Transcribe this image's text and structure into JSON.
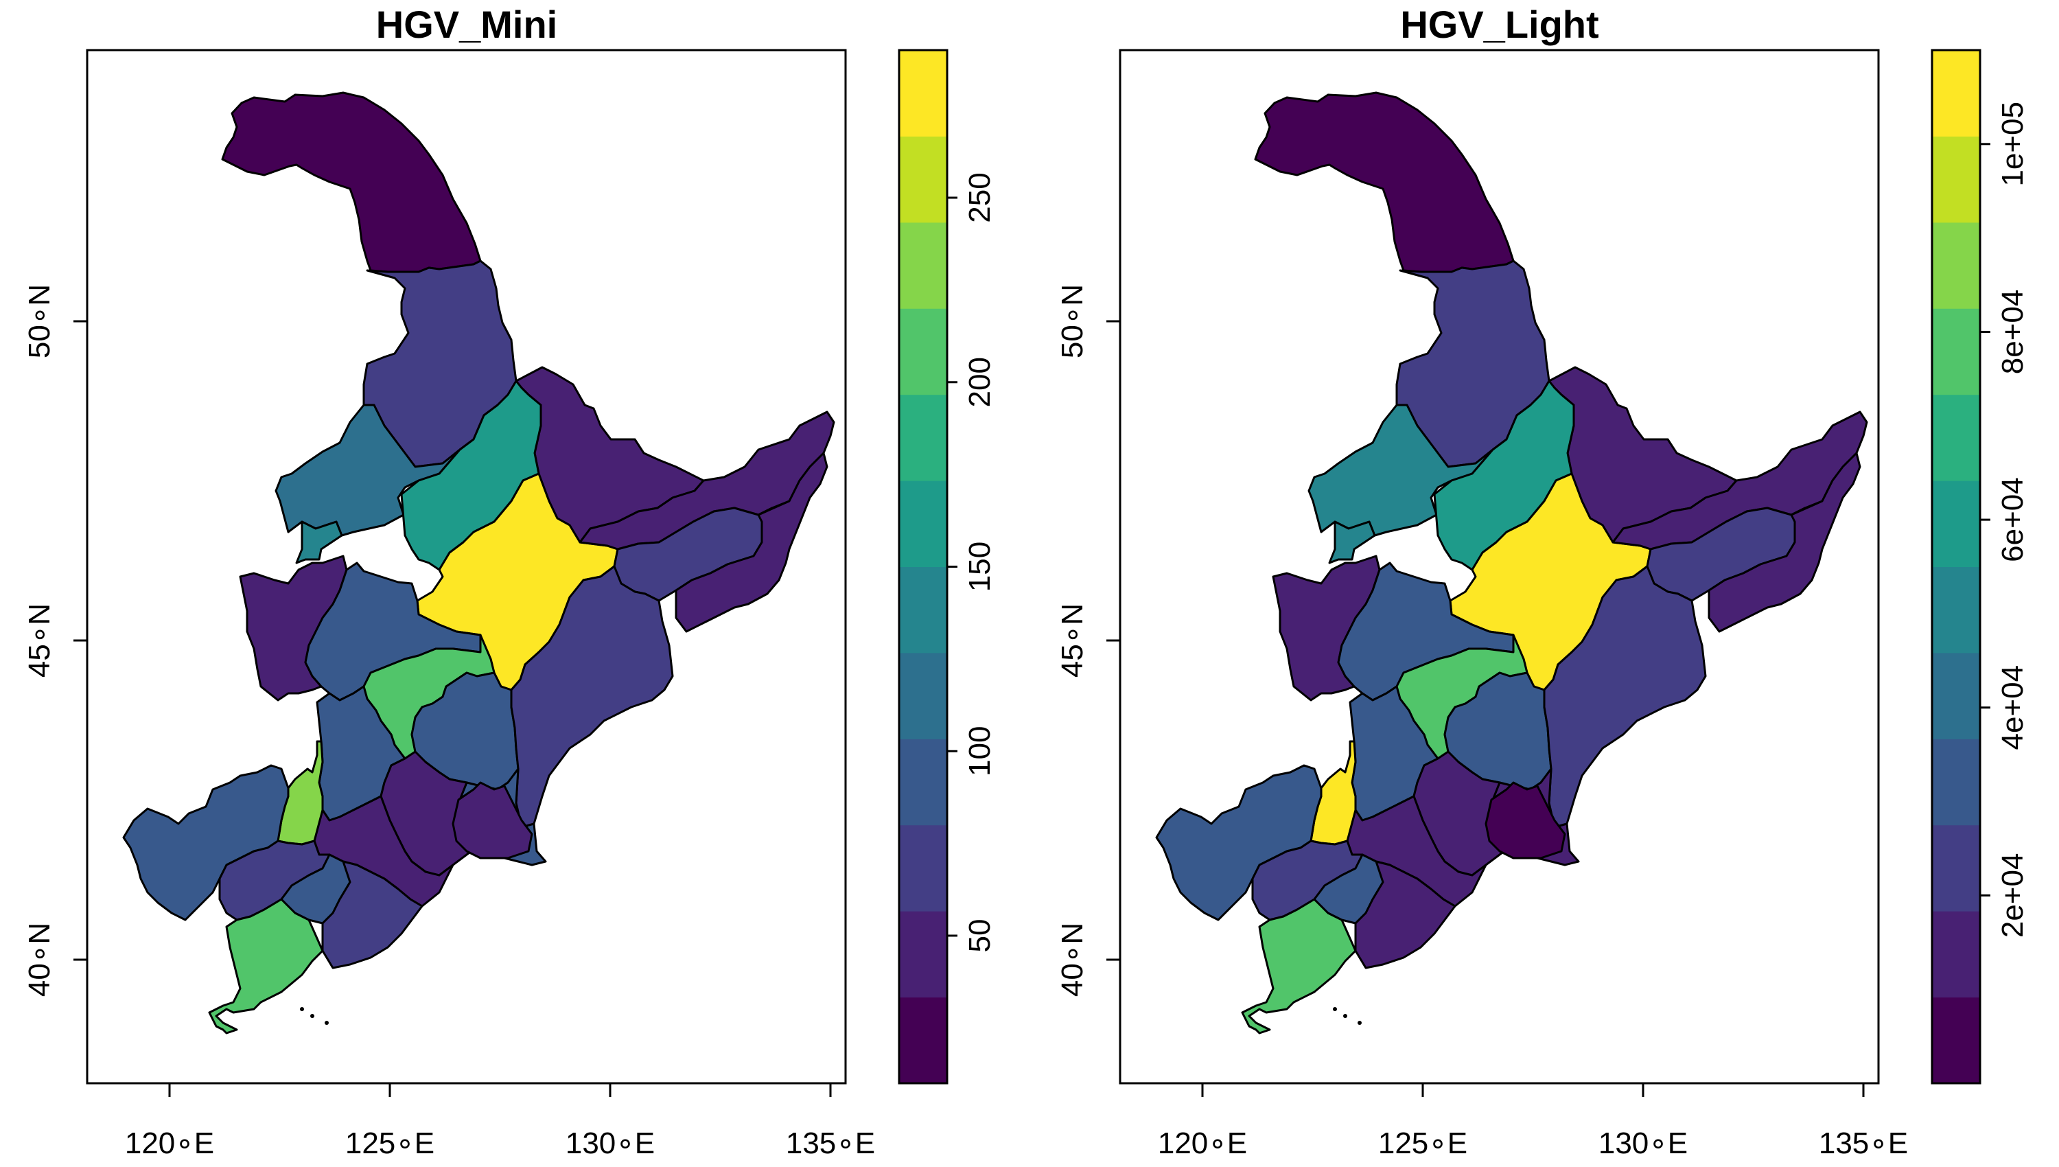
{
  "colors": {
    "viridis11": [
      "#440154",
      "#482173",
      "#433E85",
      "#38598C",
      "#2D708E",
      "#25858E",
      "#1E9B8A",
      "#2BB07F",
      "#51C56A",
      "#85D54A",
      "#C2DF23",
      "#FDE725"
    ]
  },
  "maps": [
    {
      "title": "HGV_Mini",
      "x_ticks": [
        "120∘E",
        "125∘E",
        "130∘E",
        "135∘E"
      ],
      "y_ticks": [
        "40∘N",
        "45∘N",
        "50∘N"
      ],
      "legend_ticks": [
        "50",
        "100",
        "150",
        "200",
        "250"
      ],
      "legend_range": [
        10,
        290
      ],
      "region_class": {
        "north": 0,
        "nw2": 2,
        "ne2": 1,
        "wc": 4,
        "wc2": 5,
        "harbin": 6,
        "center": 11,
        "east1": 1,
        "east2": 2,
        "east3": 1,
        "west": 1,
        "c1": 3,
        "c2": 8,
        "c3": 3,
        "se1": 2,
        "se2": 3,
        "s1": 3,
        "s2": 1,
        "s3": 1,
        "fuxin": 9,
        "west2": 3,
        "sw": 2,
        "dalian": 8,
        "anshan": 3,
        "east4": 2,
        "yanji": 1
      }
    },
    {
      "title": "HGV_Light",
      "x_ticks": [
        "120∘E",
        "125∘E",
        "130∘E",
        "135∘E"
      ],
      "y_ticks": [
        "40∘N",
        "45∘N",
        "50∘N"
      ],
      "legend_ticks": [
        "2e+04",
        "4e+04",
        "6e+04",
        "8e+04",
        "1e+05"
      ],
      "legend_range": [
        0,
        110000
      ],
      "region_class": {
        "north": 0,
        "nw2": 2,
        "ne2": 1,
        "wc": 5,
        "wc2": 5,
        "harbin": 6,
        "center": 11,
        "east1": 1,
        "east2": 2,
        "east3": 1,
        "west": 1,
        "c1": 3,
        "c2": 8,
        "c3": 3,
        "se1": 2,
        "se2": 1,
        "s1": 3,
        "s2": 1,
        "s3": 1,
        "fuxin": 11,
        "west2": 3,
        "sw": 2,
        "dalian": 8,
        "anshan": 3,
        "east4": 1,
        "yanji": 0
      }
    }
  ]
}
